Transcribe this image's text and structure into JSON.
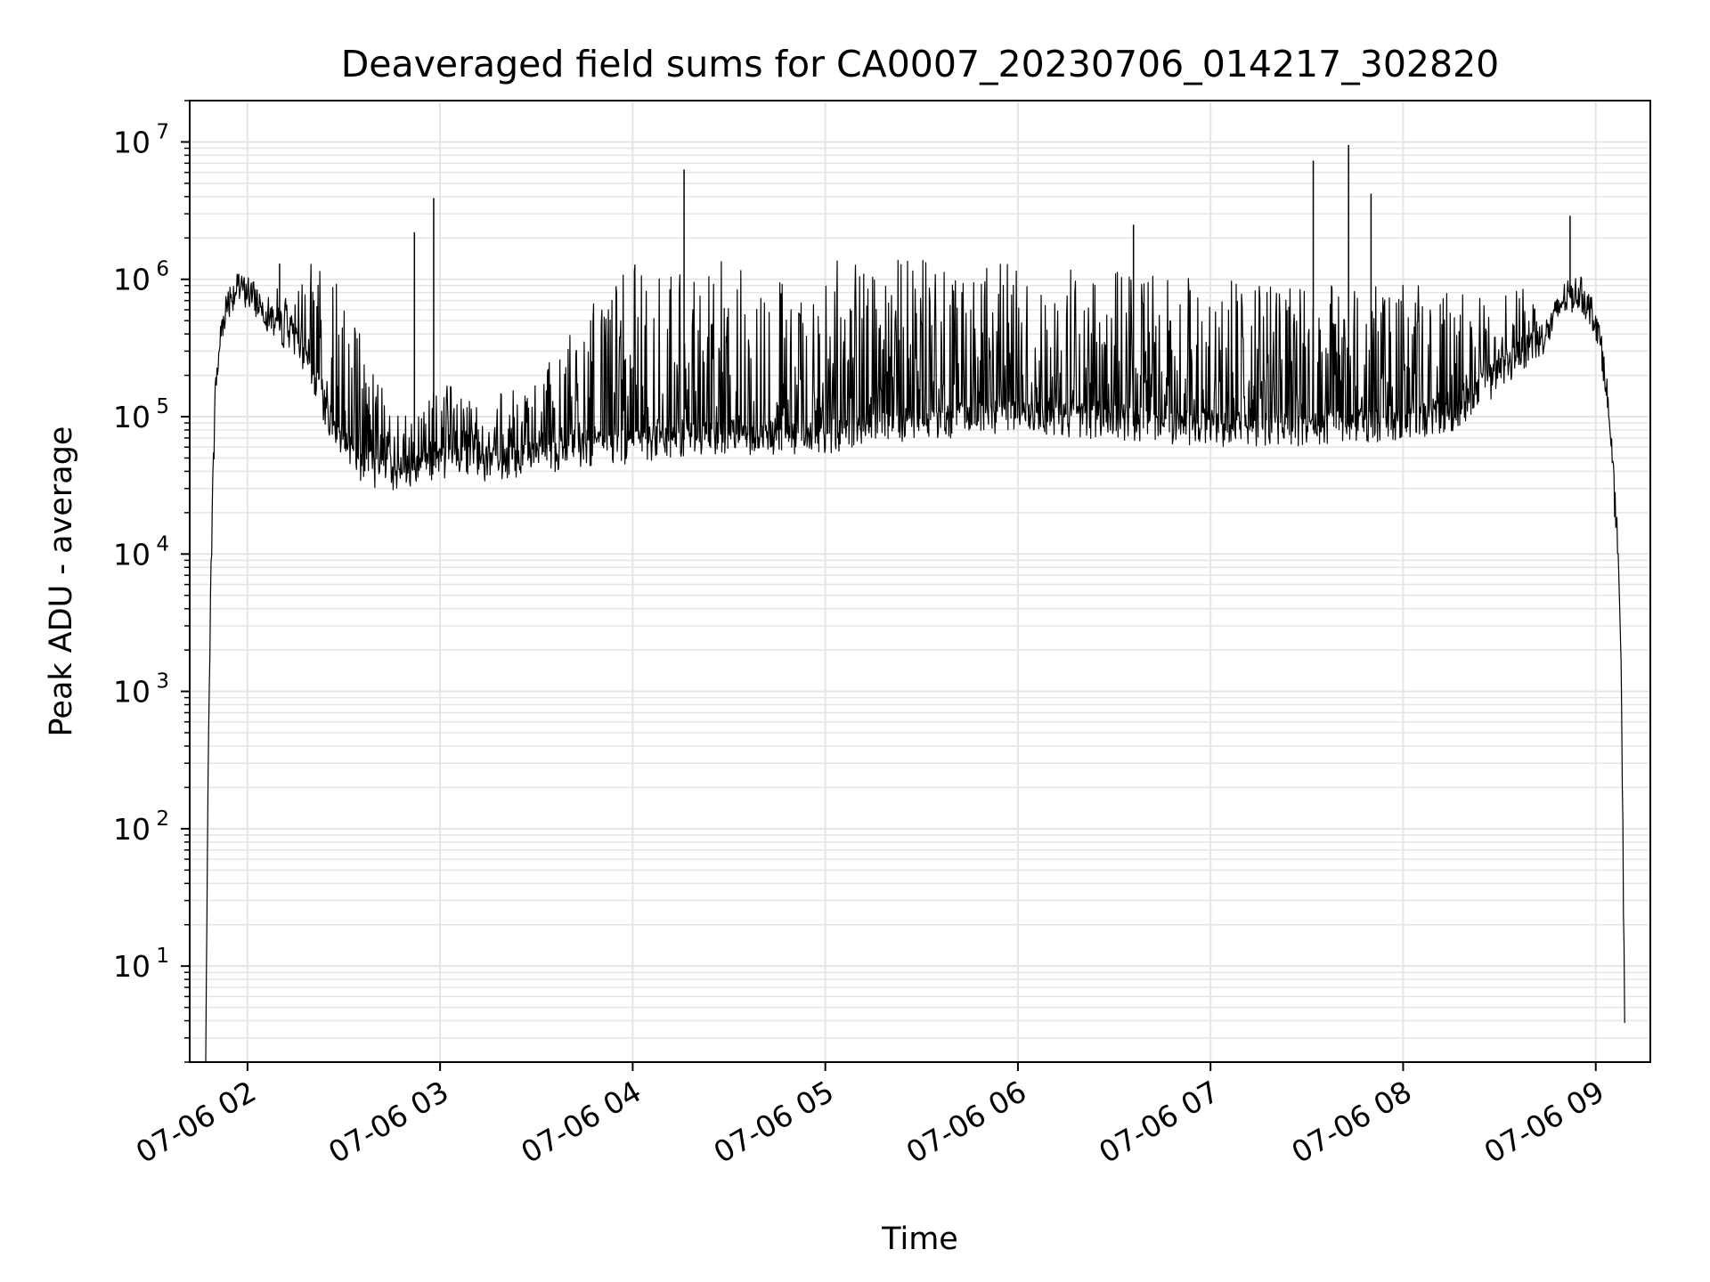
{
  "chart_data": {
    "type": "line",
    "title": "Deaveraged field sums for CA0007_20230706_014217_302820",
    "xlabel": "Time",
    "ylabel": "Peak ADU - average",
    "yscale": "log",
    "ylim": [
      2,
      20000000
    ],
    "xlim": [
      "2023-07-06T01:42",
      "2023-07-06T09:17"
    ],
    "grid": "major and minor",
    "line_color": "#000000",
    "grid_color": "#e5e5e5",
    "x_ticks": [
      {
        "value": "2023-07-06T02:00",
        "label": "07-06 02"
      },
      {
        "value": "2023-07-06T03:00",
        "label": "07-06 03"
      },
      {
        "value": "2023-07-06T04:00",
        "label": "07-06 04"
      },
      {
        "value": "2023-07-06T05:00",
        "label": "07-06 05"
      },
      {
        "value": "2023-07-06T06:00",
        "label": "07-06 06"
      },
      {
        "value": "2023-07-06T07:00",
        "label": "07-06 07"
      },
      {
        "value": "2023-07-06T08:00",
        "label": "07-06 08"
      },
      {
        "value": "2023-07-06T09:00",
        "label": "07-06 09"
      }
    ],
    "y_ticks": [
      {
        "value": 10,
        "base": "10",
        "exp": "1"
      },
      {
        "value": 100,
        "base": "10",
        "exp": "2"
      },
      {
        "value": 1000,
        "base": "10",
        "exp": "3"
      },
      {
        "value": 10000,
        "base": "10",
        "exp": "4"
      },
      {
        "value": 100000,
        "base": "10",
        "exp": "5"
      },
      {
        "value": 1000000,
        "base": "10",
        "exp": "6"
      },
      {
        "value": 10000000,
        "base": "10",
        "exp": "7"
      }
    ],
    "series": [
      {
        "x": [
          "2023-07-06T01:47",
          "2023-07-06T01:48",
          "2023-07-06T01:49",
          "2023-07-06T01:50",
          "2023-07-06T01:52",
          "2023-07-06T01:54",
          "2023-07-06T01:57",
          "2023-07-06T02:00",
          "2023-07-06T02:05",
          "2023-07-06T02:10",
          "2023-07-06T02:15",
          "2023-07-06T02:20",
          "2023-07-06T02:25",
          "2023-07-06T02:30",
          "2023-07-06T02:35",
          "2023-07-06T02:40",
          "2023-07-06T02:45",
          "2023-07-06T02:50",
          "2023-07-06T02:55",
          "2023-07-06T03:00",
          "2023-07-06T03:10",
          "2023-07-06T03:20",
          "2023-07-06T03:30",
          "2023-07-06T03:40",
          "2023-07-06T03:50",
          "2023-07-06T04:00",
          "2023-07-06T04:10",
          "2023-07-06T04:20",
          "2023-07-06T04:30",
          "2023-07-06T04:40",
          "2023-07-06T04:50",
          "2023-07-06T05:00",
          "2023-07-06T05:15",
          "2023-07-06T05:30",
          "2023-07-06T05:45",
          "2023-07-06T06:00",
          "2023-07-06T06:15",
          "2023-07-06T06:30",
          "2023-07-06T06:45",
          "2023-07-06T07:00",
          "2023-07-06T07:15",
          "2023-07-06T07:30",
          "2023-07-06T07:45",
          "2023-07-06T08:00",
          "2023-07-06T08:15",
          "2023-07-06T08:30",
          "2023-07-06T08:45",
          "2023-07-06T08:50",
          "2023-07-06T08:55",
          "2023-07-06T09:00",
          "2023-07-06T09:03",
          "2023-07-06T09:05",
          "2023-07-06T09:07",
          "2023-07-06T09:08",
          "2023-07-06T09:09"
        ],
        "baseline": [
          2,
          1000,
          20000,
          150000,
          450000,
          700000,
          820000,
          800000,
          600000,
          450000,
          350000,
          200000,
          100000,
          60000,
          45000,
          40000,
          38000,
          40000,
          42000,
          45000,
          45000,
          45000,
          50000,
          55000,
          60000,
          60000,
          65000,
          70000,
          72000,
          70000,
          68000,
          70000,
          80000,
          90000,
          95000,
          100000,
          95000,
          90000,
          85000,
          80000,
          80000,
          80000,
          85000,
          90000,
          100000,
          200000,
          400000,
          700000,
          800000,
          500000,
          200000,
          50000,
          10000,
          1000,
          4
        ],
        "upper": [
          2,
          1000,
          20000,
          150000,
          450000,
          700000,
          820000,
          800000,
          1100000,
          1200000,
          1300000,
          1300000,
          1200000,
          800000,
          400000,
          200000,
          150000,
          120000,
          120000,
          200000,
          130000,
          150000,
          180000,
          400000,
          900000,
          1300000,
          1350000,
          1400000,
          1400000,
          1400000,
          1400000,
          1400000,
          1400000,
          1400000,
          1300000,
          1300000,
          1250000,
          1200000,
          1100000,
          1050000,
          1000000,
          1000000,
          1000000,
          1000000,
          900000,
          800000,
          900000,
          1100000,
          900000,
          500000,
          200000,
          50000,
          10000,
          1000,
          4
        ]
      }
    ],
    "spikes": [
      {
        "x": "2023-07-06T02:10",
        "y": 1300000
      },
      {
        "x": "2023-07-06T02:52",
        "y": 2200000
      },
      {
        "x": "2023-07-06T02:58",
        "y": 3900000
      },
      {
        "x": "2023-07-06T04:16",
        "y": 6300000
      },
      {
        "x": "2023-07-06T06:36",
        "y": 2500000
      },
      {
        "x": "2023-07-06T07:32",
        "y": 7300000
      },
      {
        "x": "2023-07-06T07:43",
        "y": 9500000
      },
      {
        "x": "2023-07-06T07:50",
        "y": 4200000
      },
      {
        "x": "2023-07-06T08:52",
        "y": 2900000
      }
    ]
  }
}
